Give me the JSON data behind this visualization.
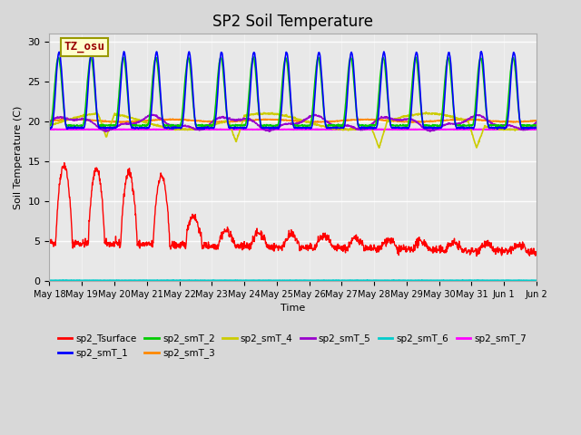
{
  "title": "SP2 Soil Temperature",
  "ylabel": "Soil Temperature (C)",
  "xlabel": "Time",
  "ylim": [
    0,
    31
  ],
  "background_color": "#d8d8d8",
  "plot_bg": "#e8e8e8",
  "tz_label": "TZ_osu",
  "tz_box_color": "#ffffcc",
  "tz_text_color": "#990000",
  "series": {
    "sp2_Tsurface": {
      "color": "#ff0000",
      "lw": 1.0
    },
    "sp2_smT_1": {
      "color": "#0000ff",
      "lw": 1.2
    },
    "sp2_smT_2": {
      "color": "#00cc00",
      "lw": 1.2
    },
    "sp2_smT_3": {
      "color": "#ff8800",
      "lw": 1.2
    },
    "sp2_smT_4": {
      "color": "#cccc00",
      "lw": 1.2
    },
    "sp2_smT_5": {
      "color": "#9900cc",
      "lw": 1.2
    },
    "sp2_smT_6": {
      "color": "#00cccc",
      "lw": 1.5
    },
    "sp2_smT_7": {
      "color": "#ff00ff",
      "lw": 1.5
    }
  },
  "x_tick_labels": [
    "May 18",
    "May 19",
    "May 20",
    "May 21",
    "May 22",
    "May 23",
    "May 24",
    "May 25",
    "May 26",
    "May 27",
    "May 28",
    "May 29",
    "May 30",
    "May 31",
    "Jun 1",
    "Jun 2"
  ],
  "n_points": 1536,
  "days": 15
}
